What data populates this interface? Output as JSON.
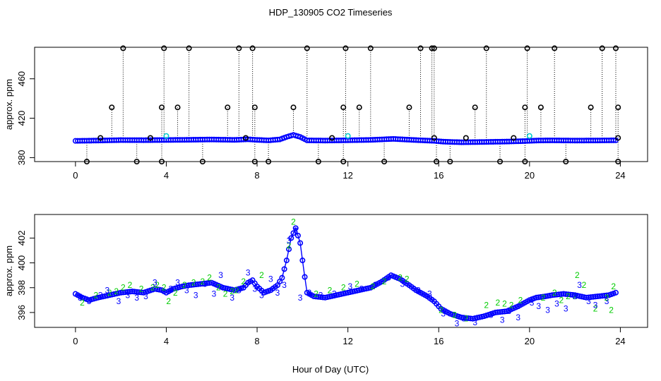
{
  "figure": {
    "title": "HDP_130905  CO2 Timeseries",
    "xlabel": "Hour of Day (UTC)"
  },
  "colors": {
    "baseline": "#0000ff",
    "line": "#0000ff",
    "spike": "#000000",
    "series_2": "#00cc00",
    "series_3": "#0000ff",
    "cyan": "#00cccc"
  },
  "chart_data": [
    {
      "type": "scatter",
      "title": "",
      "ylabel": "approx. ppm",
      "xlabel": "",
      "xlim": [
        -1.8,
        25.2
      ],
      "ylim": [
        376,
        492
      ],
      "x_ticks": [
        0,
        4,
        8,
        12,
        16,
        20,
        24
      ],
      "y_ticks": [
        380,
        420,
        460
      ],
      "grid": false,
      "baseline_profile": [
        [
          0,
          397
        ],
        [
          0.6,
          397.2
        ],
        [
          1.2,
          397.4
        ],
        [
          2,
          397.8
        ],
        [
          3,
          397.7
        ],
        [
          4,
          397.9
        ],
        [
          5,
          398.1
        ],
        [
          6,
          398.4
        ],
        [
          7,
          398
        ],
        [
          7.6,
          398.6
        ],
        [
          8,
          398
        ],
        [
          8.5,
          397.5
        ],
        [
          9,
          398.5
        ],
        [
          9.3,
          401
        ],
        [
          9.6,
          403
        ],
        [
          9.9,
          401
        ],
        [
          10.2,
          397.5
        ],
        [
          11,
          397.3
        ],
        [
          12,
          397.6
        ],
        [
          13,
          398
        ],
        [
          14,
          399
        ],
        [
          15,
          397.8
        ],
        [
          15.8,
          397
        ],
        [
          16.2,
          396.2
        ],
        [
          17,
          395.6
        ],
        [
          18,
          395.9
        ],
        [
          19,
          396.3
        ],
        [
          19.8,
          396.8
        ],
        [
          20.4,
          397.4
        ],
        [
          21,
          397.5
        ],
        [
          22,
          397.3
        ],
        [
          23,
          397.4
        ],
        [
          23.8,
          397.6
        ]
      ],
      "spikes_high": [
        [
          2.1,
          491
        ],
        [
          3.9,
          491
        ],
        [
          5,
          491
        ],
        [
          7.2,
          491
        ],
        [
          7.8,
          491
        ],
        [
          10.2,
          491
        ],
        [
          11.9,
          491
        ],
        [
          13,
          491
        ],
        [
          15.2,
          491
        ],
        [
          15.7,
          491
        ],
        [
          15.8,
          491
        ],
        [
          18.1,
          491
        ],
        [
          19.9,
          491
        ],
        [
          21.1,
          491
        ],
        [
          23.2,
          491
        ],
        [
          23.8,
          491
        ]
      ],
      "spikes_mid": [
        [
          1.6,
          431
        ],
        [
          3.8,
          431
        ],
        [
          4.5,
          431
        ],
        [
          6.7,
          431
        ],
        [
          7.9,
          431
        ],
        [
          9.6,
          431
        ],
        [
          11.8,
          431
        ],
        [
          12.5,
          431
        ],
        [
          14.7,
          431
        ],
        [
          17.6,
          431
        ],
        [
          19.8,
          431
        ],
        [
          20.5,
          431
        ],
        [
          22.7,
          431
        ],
        [
          23.9,
          431
        ]
      ],
      "spikes_low": [
        [
          0.5,
          376
        ],
        [
          2.7,
          376
        ],
        [
          3.8,
          376
        ],
        [
          5.6,
          376
        ],
        [
          7.9,
          376
        ],
        [
          8.5,
          376
        ],
        [
          10.7,
          376
        ],
        [
          11.8,
          376
        ],
        [
          13.6,
          376
        ],
        [
          15.9,
          376
        ],
        [
          16.5,
          376
        ],
        [
          18.7,
          376
        ],
        [
          19.8,
          376
        ],
        [
          21.6,
          376
        ],
        [
          23.9,
          376
        ]
      ],
      "bumps": [
        [
          1.1,
          400
        ],
        [
          3.3,
          400
        ],
        [
          7.5,
          400
        ],
        [
          11.3,
          400
        ],
        [
          15.8,
          400
        ],
        [
          17.2,
          400
        ],
        [
          19.3,
          400
        ],
        [
          23.9,
          400
        ]
      ],
      "cyan_marks": [
        [
          4.0,
          402
        ],
        [
          12.0,
          402
        ],
        [
          20.0,
          402
        ]
      ]
    },
    {
      "type": "line",
      "title": "",
      "ylabel": "approx. ppm",
      "xlabel": "Hour of Day (UTC)",
      "xlim": [
        -1.8,
        25.2
      ],
      "ylim": [
        394.8,
        403.9
      ],
      "x_ticks": [
        0,
        4,
        8,
        12,
        16,
        20,
        24
      ],
      "y_ticks": [
        396,
        398,
        400,
        402
      ],
      "grid": false,
      "legend": "none",
      "series": [
        {
          "name": "2",
          "symbol": "2",
          "x": [
            0.3,
            0.9,
            1.5,
            1.8,
            2.1,
            2.4,
            2.9,
            3.4,
            3.6,
            3.9,
            4.1,
            4.4,
            4.8,
            5.2,
            5.6,
            5.9,
            6.3,
            6.6,
            6.9,
            7.1,
            7.4,
            8.2,
            9.4,
            9.6,
            10.6,
            11.2,
            11.8,
            12.4,
            13.1,
            13.6,
            14.3,
            14.6,
            16.1,
            16.7,
            17.2,
            18.1,
            18.6,
            18.9,
            19.2,
            19.6,
            20.6,
            21.1,
            21.4,
            21.7,
            22,
            22.1,
            22.4,
            22.9,
            23.4,
            23.6,
            23.7
          ],
          "y": [
            396.8,
            397.4,
            397.6,
            397.7,
            398,
            398.2,
            397.9,
            398,
            398.2,
            398,
            396.9,
            397.6,
            398.2,
            398.4,
            398.5,
            398.8,
            398,
            397.5,
            397.7,
            397.8,
            398.5,
            399,
            401.4,
            403.3,
            397.5,
            397.8,
            398,
            398.3,
            398.1,
            398.5,
            398.8,
            398.7,
            396.2,
            395.8,
            395.5,
            396.6,
            396.8,
            396.7,
            396.6,
            397,
            397.2,
            397.6,
            397,
            397.3,
            397.3,
            399,
            398.2,
            396.3,
            397.2,
            396.2,
            398.1
          ]
        },
        {
          "name": "3",
          "symbol": "3",
          "x": [
            0.2,
            0.6,
            1.1,
            1.4,
            1.9,
            2.3,
            2.7,
            3.1,
            3.5,
            4.2,
            4.5,
            4.9,
            5.3,
            5.7,
            6.1,
            6.4,
            6.9,
            7.2,
            7.6,
            7.9,
            8.2,
            8.6,
            8.9,
            9.2,
            9.4,
            9.7,
            9.9,
            10.3,
            10.8,
            11.4,
            12.1,
            12.6,
            13.2,
            13.8,
            14.4,
            15.1,
            15.6,
            16.2,
            16.8,
            17.1,
            17.6,
            18.3,
            18.8,
            19.1,
            19.5,
            20.1,
            20.4,
            20.8,
            21.2,
            21.6,
            22,
            22.2,
            22.6,
            22.9,
            23.4
          ],
          "y": [
            397.2,
            396.9,
            397.4,
            397.8,
            396.9,
            397.4,
            397.2,
            397.3,
            398.4,
            397.9,
            398.4,
            397.8,
            397.4,
            398.3,
            397.5,
            399,
            397.2,
            397.8,
            399.2,
            397.9,
            397.4,
            398.7,
            397.6,
            398.2,
            401.8,
            402.6,
            397.2,
            397.6,
            397.4,
            397.5,
            398.1,
            397.9,
            398.2,
            398.8,
            398.3,
            397.8,
            397.5,
            395.9,
            395.1,
            395.5,
            395.2,
            395.8,
            395.4,
            396.1,
            395.6,
            396.8,
            396.5,
            396.2,
            396.7,
            396.3,
            397.3,
            398.2,
            396.9,
            396.6,
            396.9
          ]
        },
        {
          "name": "line",
          "x": [
            0,
            0.3,
            0.6,
            1,
            1.5,
            2,
            2.5,
            3,
            3.5,
            3.8,
            4,
            4.3,
            4.7,
            5,
            5.5,
            6,
            6.5,
            7,
            7.4,
            7.6,
            7.8,
            8,
            8.3,
            8.6,
            8.9,
            9.1,
            9.3,
            9.5,
            9.7,
            9.9,
            10.05,
            10.2,
            10.5,
            11,
            11.5,
            12,
            12.5,
            13,
            13.5,
            13.9,
            14.3,
            14.7,
            15,
            15.5,
            15.8,
            16.1,
            16.5,
            17,
            17.5,
            18,
            18.5,
            19,
            19.5,
            19.8,
            20,
            20.3,
            20.7,
            21,
            21.5,
            22,
            22.5,
            23,
            23.5,
            23.8
          ],
          "y": [
            397.5,
            397.2,
            397,
            397.2,
            397.4,
            397.6,
            397.7,
            397.6,
            397.9,
            397.8,
            397.6,
            397.9,
            398.1,
            398.2,
            398.3,
            398.4,
            398,
            397.8,
            398,
            398.4,
            398.6,
            398.1,
            397.6,
            397.8,
            398.2,
            398.8,
            400.2,
            402,
            402.8,
            401.6,
            399.5,
            397.6,
            397.3,
            397.2,
            397.4,
            397.6,
            397.8,
            398,
            398.5,
            399,
            398.7,
            398.2,
            397.8,
            397.3,
            396.9,
            396.3,
            395.9,
            395.6,
            395.5,
            395.7,
            396,
            396.1,
            396.5,
            396.8,
            397,
            397.2,
            397.3,
            397.4,
            397.5,
            397.4,
            397.2,
            397.3,
            397.4,
            397.6
          ]
        }
      ]
    }
  ]
}
